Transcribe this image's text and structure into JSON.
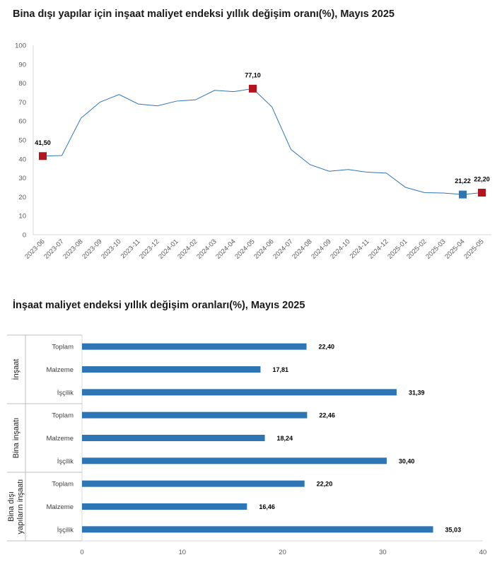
{
  "chart_data": [
    {
      "type": "line",
      "title": "Bina dışı yapılar için inşaat maliyet endeksi yıllık değişim oranı(%), Mayıs 2025",
      "x": [
        "2023-06",
        "2023-07",
        "2023-08",
        "2023-09",
        "2023-10",
        "2023-11",
        "2023-12",
        "2024-01",
        "2024-02",
        "2024-03",
        "2024-04",
        "2024-05",
        "2024-06",
        "2024-07",
        "2024-08",
        "2024-09",
        "2024-10",
        "2024-11",
        "2024-12",
        "2025-01",
        "2025-02",
        "2025-03",
        "2025-04",
        "2025-05"
      ],
      "series": [
        {
          "values": [
            41.5,
            41.8,
            61.5,
            70.0,
            74.0,
            69.0,
            68.0,
            70.5,
            71.2,
            76.2,
            75.5,
            77.1,
            67.5,
            45.0,
            37.0,
            33.5,
            34.4,
            33.0,
            32.5,
            25.0,
            22.2,
            22.0,
            21.22,
            22.2
          ],
          "color": "#2e75b6"
        }
      ],
      "highlighted_points": [
        {
          "x": "2023-06",
          "label": "41,50",
          "color": "#b4141e"
        },
        {
          "x": "2024-05",
          "label": "77,10",
          "color": "#b4141e"
        },
        {
          "x": "2025-04",
          "label": "21,22",
          "color": "#2e75b6"
        },
        {
          "x": "2025-05",
          "label": "22,20",
          "color": "#b4141e"
        }
      ],
      "y_ticks": [
        "0",
        "10",
        "20",
        "30",
        "40",
        "50",
        "60",
        "70",
        "80",
        "90",
        "100"
      ],
      "ylim": [
        0,
        100
      ],
      "grid": false
    },
    {
      "type": "bar",
      "orientation": "horizontal",
      "title": "İnşaat maliyet endeksi yıllık değişim oranları(%), Mayıs 2025",
      "groups": [
        {
          "name": "İnşaat",
          "categories": [
            "Toplam",
            "Malzeme",
            "İşçilik"
          ],
          "values": [
            22.4,
            17.81,
            31.39
          ],
          "labels": [
            "22,40",
            "17,81",
            "31,39"
          ]
        },
        {
          "name": "Bina inşaatı",
          "categories": [
            "Toplam",
            "Malzeme",
            "İşçilik"
          ],
          "values": [
            22.46,
            18.24,
            30.4
          ],
          "labels": [
            "22,46",
            "18,24",
            "30,40"
          ]
        },
        {
          "name": "Bina dışı yapıların inşaatı",
          "name_lines": [
            "Bina dışı",
            "yapıların inşaatı"
          ],
          "categories": [
            "Toplam",
            "Malzeme",
            "İşçilik"
          ],
          "values": [
            22.2,
            16.46,
            35.03
          ],
          "labels": [
            "22,20",
            "16,46",
            "35,03"
          ]
        }
      ],
      "x_ticks": [
        "0",
        "10",
        "20",
        "30",
        "40"
      ],
      "xlim": [
        0,
        40
      ],
      "color": "#2e75b6",
      "grid": false
    }
  ]
}
